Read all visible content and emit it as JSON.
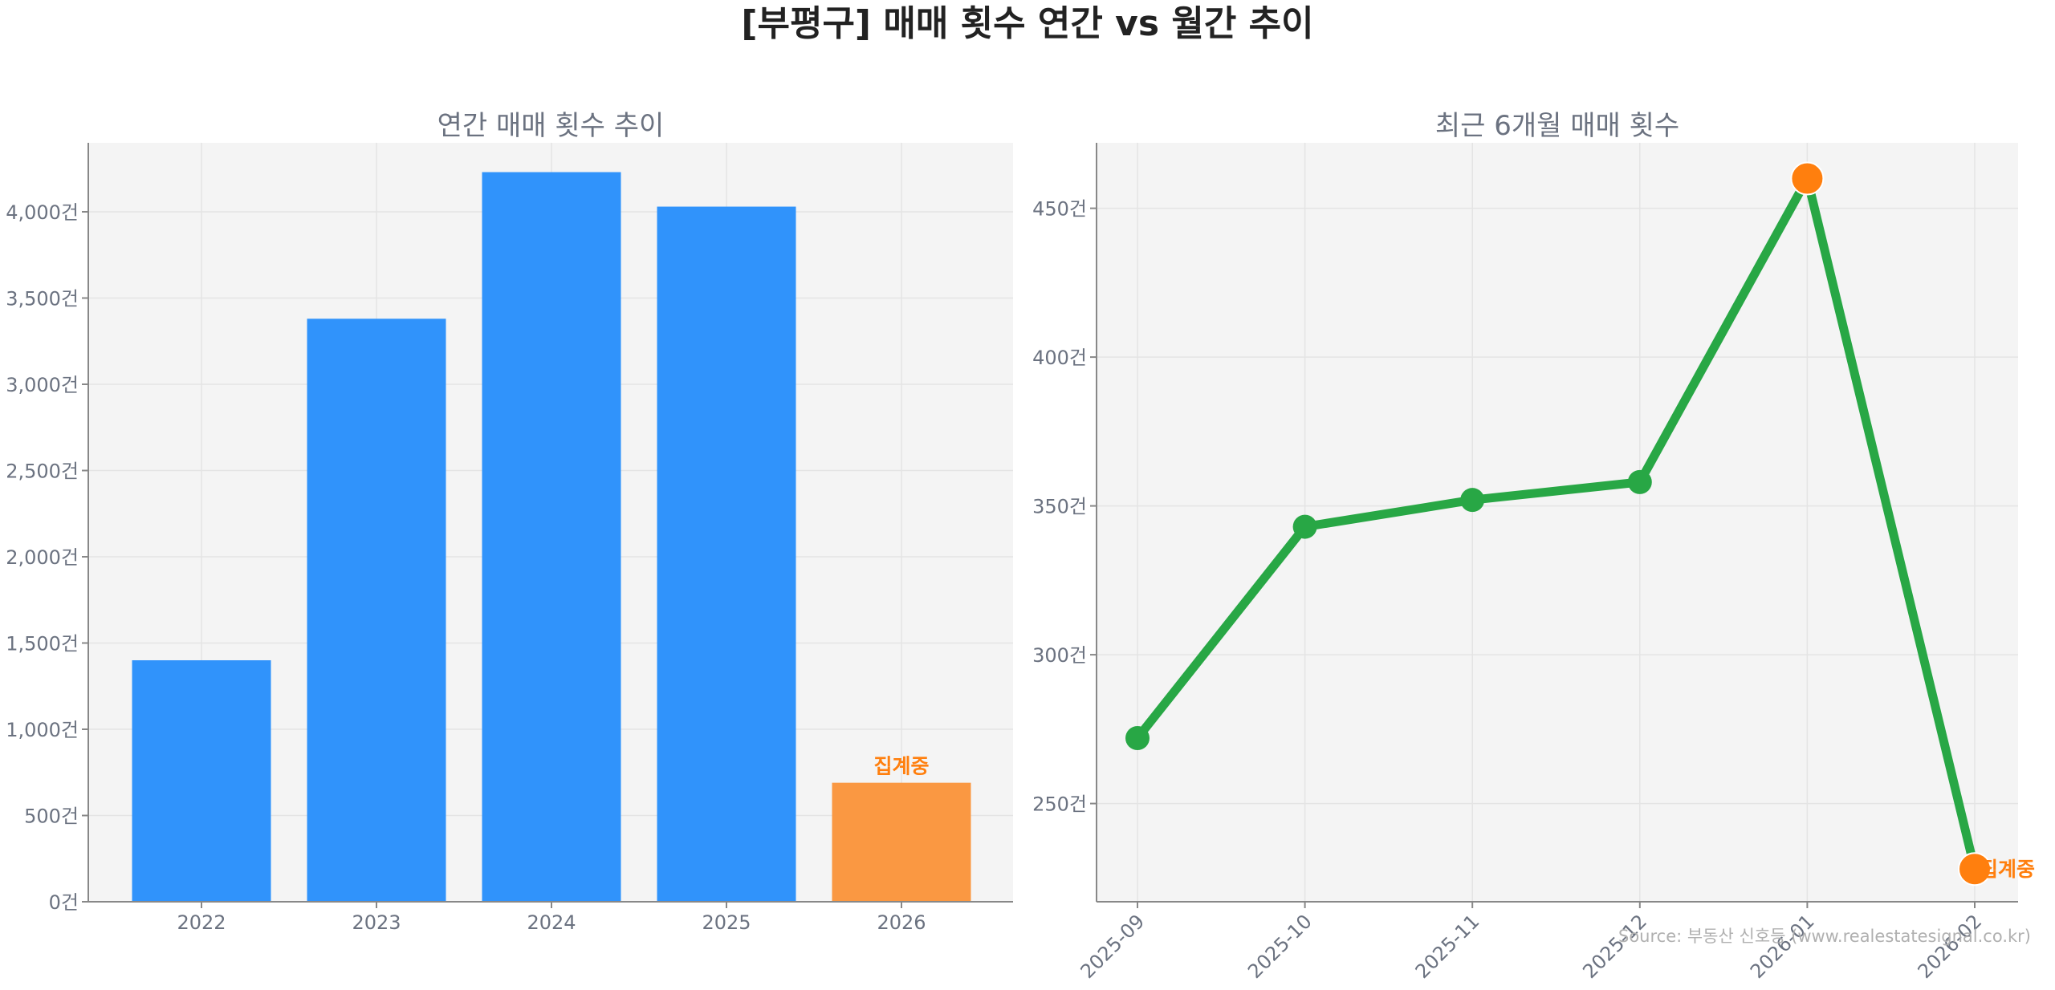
{
  "title": "[부평구] 매매 횟수 연간 vs 월간 추이",
  "source": "Source: 부동산 신호등 (www.realestatesignal.co.kr)",
  "colors": {
    "bar": "#3093fb",
    "bar_highlight": "#fa9842",
    "line": "#28a745",
    "highlight": "#ff7f0e",
    "panel_bg": "#f4f4f4"
  },
  "chart_data": [
    {
      "type": "bar",
      "title": "연간 매매 횟수 추이",
      "categories": [
        "2022",
        "2023",
        "2024",
        "2025",
        "2026"
      ],
      "values": [
        1400,
        3380,
        4230,
        4030,
        690
      ],
      "highlight_index": 4,
      "annotation": {
        "category": "2026",
        "text": "집계중"
      },
      "ylim": [
        0,
        4400
      ],
      "yticks": [
        0,
        500,
        1000,
        1500,
        2000,
        2500,
        3000,
        3500,
        4000
      ],
      "ytick_labels": [
        "0건",
        "500건",
        "1,000건",
        "1,500건",
        "2,000건",
        "2,500건",
        "3,000건",
        "3,500건",
        "4,000건"
      ],
      "xlabel": "",
      "ylabel": "",
      "grid": true
    },
    {
      "type": "line",
      "title": "최근 6개월 매매 횟수",
      "x": [
        "2025-09",
        "2025-10",
        "2025-11",
        "2025-12",
        "2026-01",
        "2026-02"
      ],
      "values": [
        272,
        343,
        352,
        358,
        460,
        228
      ],
      "highlight_points": [
        4,
        5
      ],
      "annotation": {
        "x": "2026-02",
        "text": "집계중"
      },
      "ylim": [
        217,
        472
      ],
      "yticks": [
        250,
        300,
        350,
        400,
        450
      ],
      "ytick_labels": [
        "250건",
        "300건",
        "350건",
        "400건",
        "450건"
      ],
      "xlabel": "",
      "ylabel": "",
      "grid": true
    }
  ]
}
